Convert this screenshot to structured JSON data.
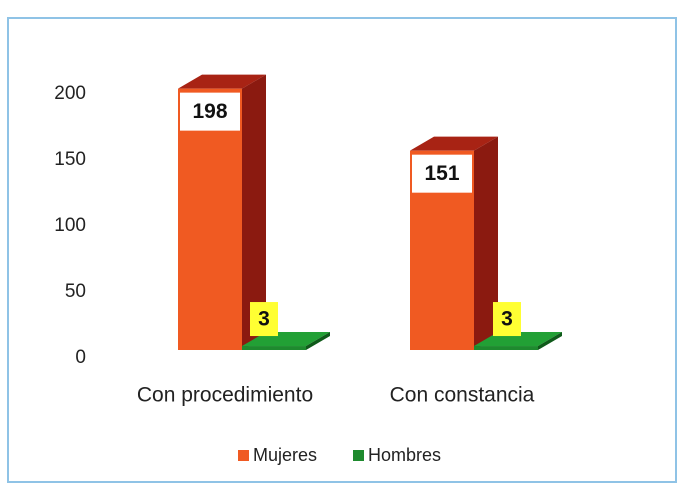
{
  "chart_data": {
    "type": "bar3d",
    "categories": [
      "Con procedimiento",
      "Con constancia"
    ],
    "series": [
      {
        "name": "Mujeres",
        "color": "#f05a22",
        "side": "#8b1a10",
        "top": "#a82314",
        "values": [
          198,
          151
        ]
      },
      {
        "name": "Hombres",
        "color": "#1e8a2e",
        "side": "#0f5a1a",
        "top": "#22a035",
        "values": [
          3,
          3
        ]
      }
    ],
    "ylim": [
      0,
      200
    ],
    "yticks": [
      0,
      50,
      100,
      150,
      200
    ],
    "grid": false
  }
}
